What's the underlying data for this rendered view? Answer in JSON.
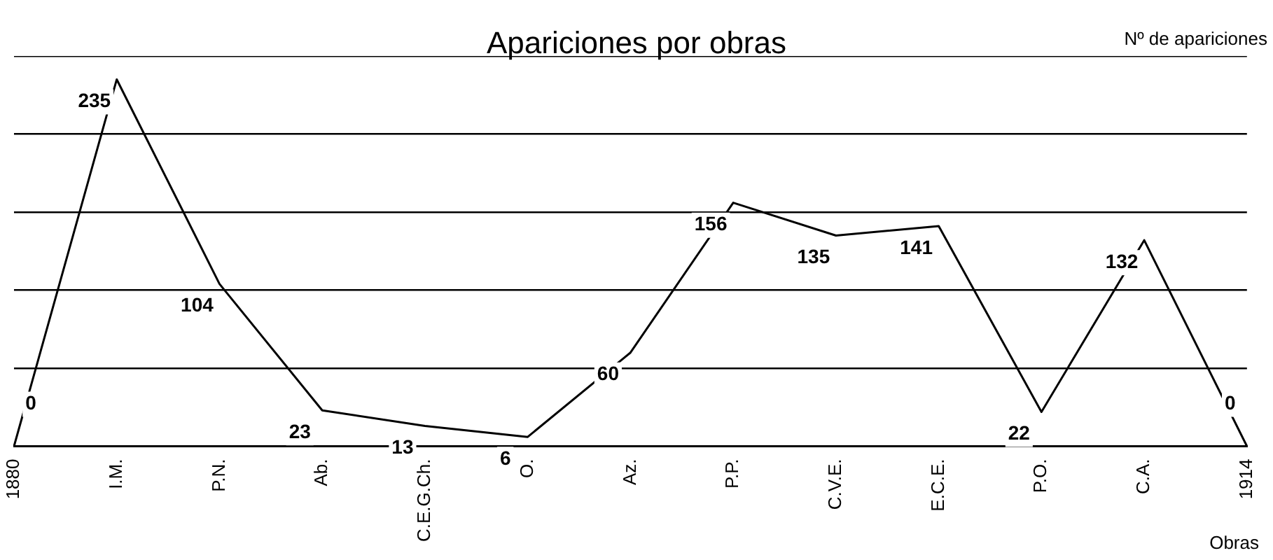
{
  "chart_data": {
    "type": "line",
    "title": "Apariciones por obras",
    "xlabel": "Obras",
    "ylabel": "Nº de apariciones",
    "categories": [
      "1880",
      "I.M.",
      "P.N.",
      "Ab.",
      "C.E.G.Ch.",
      "O.",
      "Az.",
      "P.P.",
      "C.V.E.",
      "E.C.E.",
      "P.O.",
      "C.A.",
      "1914"
    ],
    "series": [
      {
        "color": "#000000",
        "values": [
          0,
          235,
          104,
          23,
          13,
          6,
          60,
          156,
          135,
          141,
          22,
          132,
          0
        ]
      }
    ],
    "ylim": [
      0,
      250
    ],
    "yticks": [
      {
        "value": 0,
        "label": null
      },
      {
        "value": 50,
        "label": null
      },
      {
        "value": 100,
        "label": null
      },
      {
        "value": 150,
        "label": null
      },
      {
        "value": 200,
        "label": null
      },
      {
        "value": 250,
        "label": null
      }
    ],
    "tick_labels": "x",
    "grid": "y",
    "marker": "none",
    "line_style": "solid",
    "data_labels": true,
    "legend": false
  }
}
